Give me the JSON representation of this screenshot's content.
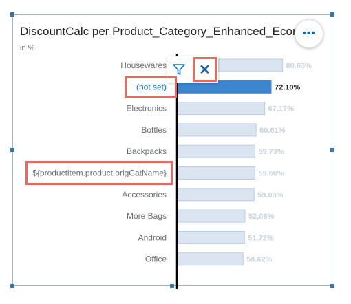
{
  "header": {
    "title": "DiscountCalc per Product_Category_Enhanced_Ecomme",
    "subtitle": "in %"
  },
  "toolbar": {
    "more_icon": "more-horizontal-icon",
    "more_glyph": "•••",
    "filter_icon": "filter-icon",
    "close_icon": "close-icon",
    "close_glyph": "✕"
  },
  "colors": {
    "bar": "#dbe5f1",
    "bar_selected": "#3c86d0",
    "highlight": "#e8695f",
    "link": "#0a6ed1"
  },
  "chart_data": {
    "type": "bar",
    "orientation": "horizontal",
    "title": "DiscountCalc per Product_Category_Enhanced_Ecomme",
    "subtitle": "in %",
    "categories": [
      "Housewares",
      "(not set)",
      "Electronics",
      "Bottles",
      "Backpacks",
      "${productitem.product.origCatName}",
      "Accessories",
      "More Bags",
      "Android",
      "Office"
    ],
    "values": [
      80.83,
      72.1,
      67.17,
      60.61,
      59.73,
      59.66,
      59.03,
      52.08,
      51.72,
      50.62
    ],
    "value_labels": [
      "80.83%",
      "72.10%",
      "67.17%",
      "60.61%",
      "59.73%",
      "59.66%",
      "59.03%",
      "52.08%",
      "51.72%",
      "50.62%"
    ],
    "selected": [
      "(not set)"
    ],
    "highlighted_labels": [
      "(not set)",
      "${productitem.product.origCatName}"
    ],
    "xlim": [
      0,
      100
    ],
    "grid": false,
    "legend": "none"
  }
}
